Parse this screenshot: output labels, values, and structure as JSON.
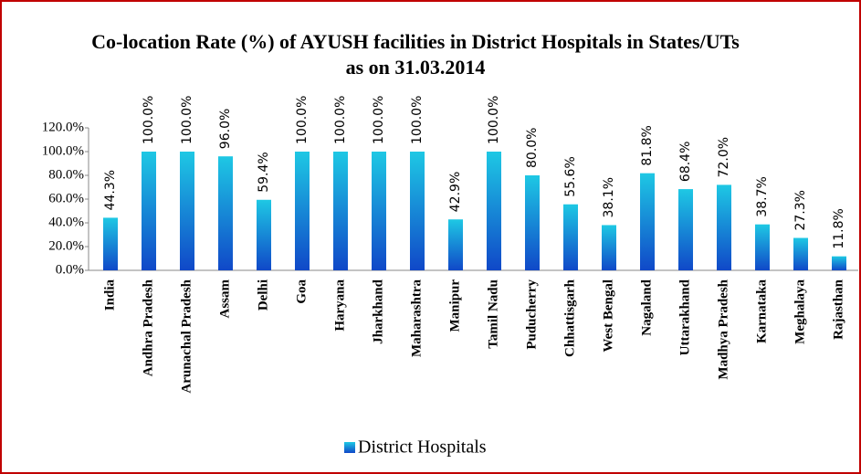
{
  "chart_data": {
    "type": "bar",
    "title": "Co-location Rate (%) of AYUSH facilities in District Hospitals in States/UTs",
    "subtitle": "as on 31.03.2014",
    "categories": [
      "India",
      "Andhra Pradesh",
      "Arunachal Pradesh",
      "Assam",
      "Delhi",
      "Goa",
      "Haryana",
      "Jharkhand",
      "Maharashtra",
      "Manipur",
      "Tamil Nadu",
      "Puducherry",
      "Chhattisgarh",
      "West Bengal",
      "Nagaland",
      "Uttarakhand",
      "Madhya Pradesh",
      "Karnataka",
      "Meghalaya",
      "Rajasthan"
    ],
    "series": [
      {
        "name": "District Hospitals",
        "color": "#1ec8e4",
        "values": [
          44.3,
          100,
          100,
          96,
          59.4,
          100,
          100,
          100,
          100,
          42.9,
          100,
          80,
          55.6,
          38.1,
          81.8,
          68.4,
          72,
          38.7,
          27.3,
          11.8
        ],
        "value_labels": [
          "44.3%",
          "100.0%",
          "100.0%",
          "96.0%",
          "59.4%",
          "100.0%",
          "100.0%",
          "100.0%",
          "100.0%",
          "42.9%",
          "100.0%",
          "80.0%",
          "55.6%",
          "38.1%",
          "81.8%",
          "68.4%",
          "72.0%",
          "38.7%",
          "27.3%",
          "11.8%"
        ]
      }
    ],
    "ylim": [
      0,
      120
    ],
    "yticks": [
      {
        "value": 0,
        "label": "0.0%"
      },
      {
        "value": 20,
        "label": "20.0%"
      },
      {
        "value": 40,
        "label": "40.0%"
      },
      {
        "value": 60,
        "label": "60.0%"
      },
      {
        "value": 80,
        "label": "80.0%"
      },
      {
        "value": 100,
        "label": "100.0%"
      },
      {
        "value": 120,
        "label": "120.0%"
      }
    ],
    "legend": "bottom"
  }
}
